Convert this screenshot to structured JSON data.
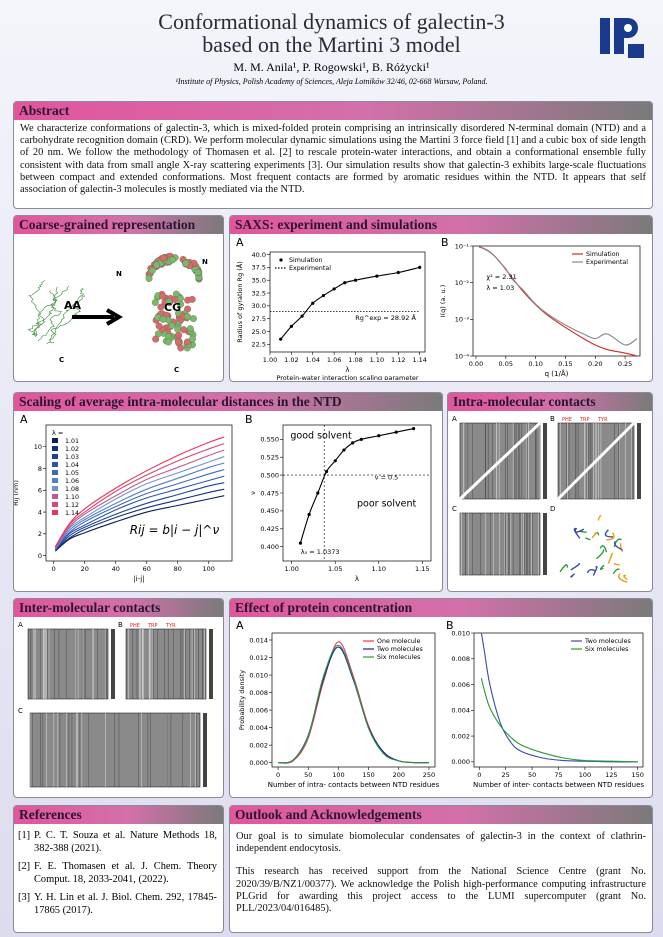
{
  "header": {
    "title_line1": "Conformational dynamics of galectin-3",
    "title_line2": "based on the Martini 3 model",
    "authors": "M. M. Anila¹, P. Rogowski¹, B. Różycki¹",
    "affiliation": "¹Institute of Physics, Polish Academy of Sciences, Aleja Lotników 32/46, 02-668 Warsaw, Poland."
  },
  "abstract": {
    "title": "Abstract",
    "text": "We characterize conformations of galectin-3, which is mixed-folded protein comprising an intrinsically disordered N-terminal domain (NTD) and a carbohydrate recognition domain (CRD). We perform molecular dynamic simulations using the Martini 3 force field [1] and a cubic box of side length of 20 nm. We follow the methodology of Thomasen et al. [2] to rescale protein-water interactions, and obtain a conformational ensemble fully consistent with data from small angle X-ray scattering experiments [3]. Our simulation results show that galectin-3 exhibits large-scale fluctuations between compact and extended conformations. Most frequent contacts are formed by aromatic residues within the NTD. It appears that self association of galectin-3 molecules is mostly mediated via the NTD."
  },
  "cg": {
    "title": "Coarse-grained representation",
    "labels": [
      "AA",
      "CG",
      "N",
      "C",
      "N",
      "C"
    ]
  },
  "saxs": {
    "title": "SAXS: experiment and simulations",
    "panels": [
      {
        "label": "A",
        "xlabel": "λ",
        "xcaption": "Protein-water interaction scaling parameter",
        "ylabel": "Radius of gyration Rg (Å)",
        "xlim": [
          1.0,
          1.145
        ],
        "ylim": [
          21,
          40.5
        ],
        "xticks": [
          {
            "value": 1.0,
            "label": "1.00"
          },
          1.02,
          1.04,
          1.06,
          1.08,
          {
            "value": 1.1,
            "label": "1.10"
          },
          1.12,
          1.14
        ],
        "yticks": [
          22.5,
          {
            "value": 25,
            "label": "25.0"
          },
          27.5,
          {
            "value": 30,
            "label": "30.0"
          },
          32.5,
          {
            "value": 35,
            "label": "35.0"
          },
          37.5,
          {
            "value": 40,
            "label": "40.0"
          }
        ],
        "legend": "upper left",
        "annotations": [
          "Rg^exp = 28.92 Å"
        ],
        "series": [
          {
            "name": "Simulation",
            "color": "#000000",
            "style": "line+markers",
            "x": [
              1.01,
              1.02,
              1.03,
              1.04,
              1.05,
              1.06,
              1.07,
              1.08,
              1.1,
              1.12,
              1.14
            ],
            "values": [
              23.5,
              26,
              28,
              30.5,
              32,
              33.3,
              34.5,
              35,
              35.8,
              36.5,
              37.5
            ]
          },
          {
            "name": "Experimental",
            "color": "#000000",
            "style": "dotted",
            "x": [
              1.0,
              1.14
            ],
            "values": [
              28.92,
              28.92
            ]
          }
        ]
      },
      {
        "label": "B",
        "xlabel": "q (1/Å)",
        "ylabel": "I(q) (a. u.)",
        "log_y": true,
        "xlim": [
          -0.005,
          0.275
        ],
        "ylim": [
          0.0001,
          0.1
        ],
        "xticks": [
          {
            "value": 0,
            "label": "0.00"
          },
          0.05,
          {
            "value": 0.1,
            "label": "0.10"
          },
          0.15,
          {
            "value": 0.2,
            "label": "0.20"
          },
          0.25
        ],
        "yticks": [
          {
            "value": 0.0001,
            "label": "10⁻⁴"
          },
          {
            "value": 0.001,
            "label": "10⁻³"
          },
          {
            "value": 0.01,
            "label": "10⁻²"
          },
          {
            "value": 0.1,
            "label": "10⁻¹"
          }
        ],
        "legend": "upper right",
        "annotations": [
          "χ² = 2.31",
          "λ = 1.03"
        ],
        "series": [
          {
            "name": "Simulation",
            "color": "#d62728",
            "style": "line",
            "x": [
              0.005,
              0.01,
              0.02,
              0.03,
              0.04,
              0.05,
              0.06,
              0.08,
              0.1,
              0.12,
              0.15,
              0.18,
              0.2,
              0.22,
              0.25,
              0.27
            ],
            "values": [
              0.095,
              0.09,
              0.075,
              0.055,
              0.037,
              0.023,
              0.014,
              0.0055,
              0.0025,
              0.0013,
              0.0006,
              0.0003,
              0.0002,
              0.00015,
              0.00012,
              0.0001
            ]
          },
          {
            "name": "Experimental",
            "color": "#888888",
            "style": "line",
            "x": [
              0.005,
              0.01,
              0.02,
              0.03,
              0.04,
              0.05,
              0.06,
              0.08,
              0.1,
              0.12,
              0.15,
              0.18,
              0.2,
              0.22,
              0.25,
              0.27
            ],
            "values": [
              0.093,
              0.088,
              0.073,
              0.056,
              0.036,
              0.024,
              0.013,
              0.006,
              0.0026,
              0.0014,
              0.0007,
              0.0004,
              0.0003,
              0.0004,
              0.0002,
              0.0003
            ]
          }
        ]
      }
    ]
  },
  "scaling": {
    "title": "Scaling of average intra-molecular distances in the NTD",
    "panels": [
      {
        "label": "A",
        "xlabel": "|i-j|",
        "ylabel": "Rij (nm)",
        "xlim": [
          -5,
          115
        ],
        "ylim": [
          -0.5,
          12
        ],
        "xticks": [
          0,
          20,
          40,
          60,
          80,
          100
        ],
        "yticks": [
          0,
          2,
          4,
          6,
          8,
          10
        ],
        "legend": "upper left",
        "legend_title": "λ =",
        "legend_swatch": "square",
        "annotations": [
          "Rij = b|i − j|^ν"
        ],
        "series": [
          {
            "name": "1.01",
            "color": "#0b1f5c",
            "style": "line",
            "x": [
              1,
              10,
              20,
              40,
              60,
              80,
              100,
              110
            ],
            "values": [
              0.4,
              1.5,
              2.1,
              3.1,
              4.0,
              4.6,
              5.2,
              5.5
            ]
          },
          {
            "name": "1.02",
            "color": "#15307a",
            "style": "line",
            "x": [
              1,
              10,
              20,
              40,
              60,
              80,
              100,
              110
            ],
            "values": [
              0.5,
              1.6,
              2.4,
              3.5,
              4.4,
              5.1,
              5.8,
              6.1
            ]
          },
          {
            "name": "1.03",
            "color": "#1f4294",
            "style": "line",
            "x": [
              1,
              10,
              20,
              40,
              60,
              80,
              100,
              110
            ],
            "values": [
              0.5,
              1.8,
              2.6,
              3.8,
              4.8,
              5.6,
              6.4,
              6.7
            ]
          },
          {
            "name": "1.04",
            "color": "#2c55aa",
            "style": "line",
            "x": [
              1,
              10,
              20,
              40,
              60,
              80,
              100,
              110
            ],
            "values": [
              0.5,
              2.0,
              2.8,
              4.2,
              5.3,
              6.1,
              6.9,
              7.3
            ]
          },
          {
            "name": "1.05",
            "color": "#3d69bd",
            "style": "line",
            "x": [
              1,
              10,
              20,
              40,
              60,
              80,
              100,
              110
            ],
            "values": [
              0.6,
              2.1,
              3.1,
              4.5,
              5.7,
              6.6,
              7.5,
              7.9
            ]
          },
          {
            "name": "1.06",
            "color": "#547fca",
            "style": "line",
            "x": [
              1,
              10,
              20,
              40,
              60,
              80,
              100,
              110
            ],
            "values": [
              0.6,
              2.3,
              3.3,
              4.8,
              6.1,
              7.1,
              8.1,
              8.5
            ]
          },
          {
            "name": "1.08",
            "color": "#6f95d5",
            "style": "line",
            "x": [
              1,
              10,
              20,
              40,
              60,
              80,
              100,
              110
            ],
            "values": [
              0.7,
              2.5,
              3.5,
              5.2,
              6.6,
              7.6,
              8.6,
              9.1
            ]
          },
          {
            "name": "1.10",
            "color": "#c05a8a",
            "style": "line",
            "x": [
              1,
              10,
              20,
              40,
              60,
              80,
              100,
              110
            ],
            "values": [
              0.7,
              2.6,
              3.8,
              5.5,
              7.0,
              8.1,
              9.2,
              9.7
            ]
          },
          {
            "name": "1.12",
            "color": "#d8476e",
            "style": "line",
            "x": [
              1,
              10,
              20,
              40,
              60,
              80,
              100,
              110
            ],
            "values": [
              0.8,
              2.8,
              4.0,
              5.9,
              7.4,
              8.7,
              9.8,
              10.3
            ]
          },
          {
            "name": "1.14",
            "color": "#e8345a",
            "style": "line",
            "x": [
              1,
              10,
              20,
              40,
              60,
              80,
              100,
              110
            ],
            "values": [
              0.8,
              2.9,
              4.3,
              6.2,
              7.8,
              9.2,
              10.4,
              10.9
            ]
          }
        ]
      },
      {
        "label": "B",
        "xlabel": "λ",
        "ylabel": "ν",
        "xlim": [
          0.99,
          1.16
        ],
        "ylim": [
          0.38,
          0.57
        ],
        "xticks": [
          {
            "value": 1.0,
            "label": "1.00"
          },
          1.05,
          {
            "value": 1.1,
            "label": "1.10"
          },
          1.15
        ],
        "yticks": [
          {
            "value": 0.4,
            "label": "0.400"
          },
          0.425,
          {
            "value": 0.45,
            "label": "0.450"
          },
          0.475,
          {
            "value": 0.5,
            "label": "0.500"
          },
          0.525,
          {
            "value": 0.55,
            "label": "0.550"
          }
        ],
        "legend": "none",
        "hlines": [
          0.5
        ],
        "vlines": [
          1.0373
        ],
        "annotations": [
          "good solvent",
          "poor solvent",
          "ν = 0.5",
          "λ₀ = 1.0373"
        ],
        "series": [
          {
            "color": "#000000",
            "style": "line+markers",
            "x": [
              1.01,
              1.02,
              1.03,
              1.04,
              1.05,
              1.06,
              1.07,
              1.08,
              1.1,
              1.12,
              1.14
            ],
            "values": [
              0.405,
              0.445,
              0.475,
              0.505,
              0.52,
              0.535,
              0.545,
              0.55,
              0.555,
              0.56,
              0.565
            ]
          }
        ]
      }
    ]
  },
  "intra": {
    "title": "Intra-molecular contacts",
    "panel_labels": [
      "A",
      "B",
      "C",
      "D"
    ],
    "residue_labels": [
      "PHE",
      "TRP",
      "TYR"
    ]
  },
  "inter": {
    "title": "Inter-molecular contacts",
    "panel_labels": [
      "A",
      "B",
      "C"
    ],
    "residue_labels": [
      "PHE",
      "TRP",
      "TYR"
    ]
  },
  "concentration": {
    "title": "Effect of protein concentration",
    "panels": [
      {
        "label": "A",
        "xlabel": "Number of intra- contacts between NTD residues",
        "ylabel": "Probability density",
        "xlim": [
          -10,
          260
        ],
        "ylim": [
          -0.0005,
          0.0148
        ],
        "xticks": [
          0,
          50,
          100,
          150,
          200,
          250
        ],
        "yticks": [
          {
            "value": 0,
            "label": "0.000"
          },
          0.002,
          0.004,
          0.006,
          0.008,
          {
            "value": 0.01,
            "label": "0.010"
          },
          0.012,
          0.014
        ],
        "legend": "upper right",
        "series": [
          {
            "name": "One molecule",
            "color": "#e8345a",
            "style": "line",
            "x": [
              0,
              25,
              50,
              75,
              100,
              125,
              150,
              175,
              200,
              225,
              250
            ],
            "values": [
              0,
              0.0002,
              0.0028,
              0.0092,
              0.0138,
              0.0098,
              0.0042,
              0.0011,
              0.0002,
              0,
              0
            ]
          },
          {
            "name": "Two molecules",
            "color": "#1a1aa0",
            "style": "line",
            "x": [
              0,
              25,
              50,
              75,
              100,
              125,
              150,
              175,
              200,
              225,
              250
            ],
            "values": [
              0,
              0.0003,
              0.0031,
              0.0095,
              0.0132,
              0.0094,
              0.004,
              0.0012,
              0.0002,
              0,
              0
            ]
          },
          {
            "name": "Six molecules",
            "color": "#2a9a3a",
            "style": "line",
            "x": [
              0,
              25,
              50,
              75,
              100,
              125,
              150,
              175,
              200,
              225,
              250
            ],
            "values": [
              0,
              0.0003,
              0.003,
              0.0098,
              0.0134,
              0.0096,
              0.0039,
              0.001,
              0.0002,
              0,
              0
            ]
          }
        ]
      },
      {
        "label": "B",
        "xlabel": "Number of inter- contacts between NTD residues",
        "xlim": [
          -5,
          155
        ],
        "ylim": [
          -0.0004,
          0.01
        ],
        "xticks": [
          0,
          25,
          50,
          75,
          100,
          125,
          150
        ],
        "yticks": [
          {
            "value": 0,
            "label": "0.000"
          },
          0.002,
          0.004,
          0.006,
          0.008,
          {
            "value": 0.01,
            "label": "0.010"
          }
        ],
        "legend": "upper right",
        "series": [
          {
            "name": "Two molecules",
            "color": "#3a4aa8",
            "style": "line",
            "x": [
              2,
              5,
              10,
              20,
              30,
              40,
              60,
              80,
              100,
              125,
              150
            ],
            "values": [
              0.01,
              0.0085,
              0.006,
              0.003,
              0.0015,
              0.0008,
              0.0003,
              0.0001,
              5e-05,
              0,
              0
            ]
          },
          {
            "name": "Six molecules",
            "color": "#2a9a3a",
            "style": "line",
            "x": [
              2,
              5,
              10,
              20,
              30,
              40,
              60,
              80,
              100,
              125,
              150
            ],
            "values": [
              0.0065,
              0.0055,
              0.0042,
              0.0028,
              0.0019,
              0.0013,
              0.0007,
              0.0003,
              0.0001,
              5e-05,
              0
            ]
          }
        ]
      }
    ]
  },
  "references": {
    "title": "References",
    "items": [
      {
        "tag": "[1]",
        "text": "P. C. T. Souza et al. Nature Methods 18, 382-388 (2021)."
      },
      {
        "tag": "[2]",
        "text": "F. E. Thomasen et al. J. Chem. Theory Comput. 18, 2033-2041, (2022)."
      },
      {
        "tag": "[3]",
        "text": "Y. H. Lin et al. J. Biol. Chem. 292, 17845-17865 (2017)."
      }
    ]
  },
  "outlook": {
    "title": "Outlook and Acknowledgements",
    "paragraphs": [
      "Our goal is to simulate biomolecular condensates of galectin-3 in the context of clathrin-independent endocytosis.",
      "This research has received support from the National Science Centre (grant No. 2020/39/B/NZ1/00377). We acknowledge the Polish high-performance computing infrastructure PLGrid for awarding this project access to the LUMI supercomputer (grant No. PLL/2023/04/016485)."
    ]
  }
}
